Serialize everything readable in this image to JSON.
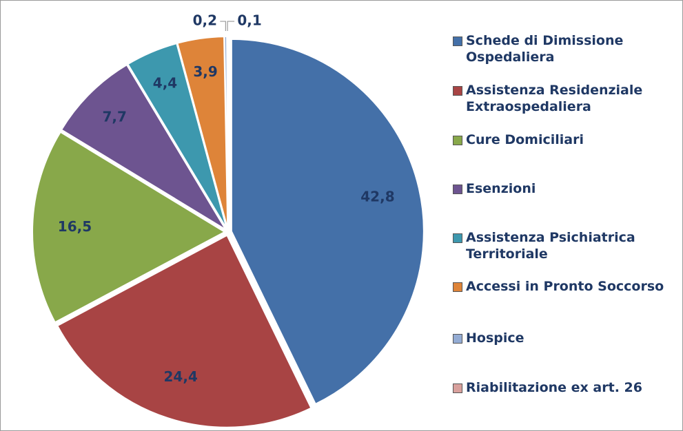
{
  "chart_data": {
    "type": "pie",
    "categories": [
      "Schede di Dimissione Ospedaliera",
      "Assistenza Residenziale Extraospedaliera",
      "Cure Domiciliari",
      "Esenzioni",
      "Assistenza Psichiatrica Territoriale",
      "Accessi in Pronto Soccorso",
      "Hospice",
      "Riabilitazione ex art. 26"
    ],
    "values": [
      42.8,
      24.4,
      16.5,
      7.7,
      4.4,
      3.9,
      0.2,
      0.1
    ],
    "value_labels": [
      "42,8",
      "24,4",
      "16,5",
      "7,7",
      "4,4",
      "3,9",
      "0,2",
      "0,1"
    ],
    "colors": [
      "#4470a8",
      "#a84444",
      "#88a84a",
      "#6d5490",
      "#3d98ae",
      "#de8439",
      "#94acd4",
      "#d8a09c"
    ],
    "legend": "right"
  }
}
